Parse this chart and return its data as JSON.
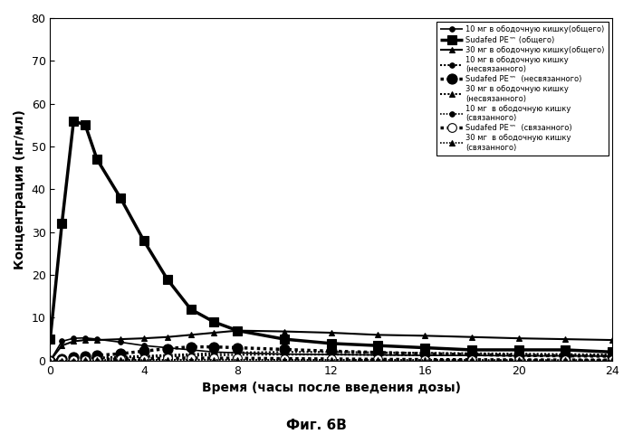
{
  "xlabel": "Время (часы после введения дозы)",
  "ylabel": "Концентрация (нг/мл)",
  "caption": "Фиг. 6B",
  "xlim": [
    0,
    24
  ],
  "ylim": [
    0,
    80
  ],
  "xticks": [
    0,
    4,
    8,
    12,
    16,
    20,
    24
  ],
  "yticks": [
    0,
    10,
    20,
    30,
    40,
    50,
    60,
    70,
    80
  ],
  "series": [
    {
      "label": "10 мг в ободочную кишку(общего)",
      "x": [
        0,
        0.5,
        1,
        1.5,
        2,
        3,
        4,
        5,
        6,
        7,
        8,
        10,
        12,
        14,
        16,
        18,
        20,
        22,
        24
      ],
      "y": [
        0,
        4.5,
        5.2,
        5.3,
        5.0,
        4.3,
        3.5,
        3.0,
        2.5,
        2.0,
        1.8,
        1.5,
        1.4,
        1.3,
        1.2,
        1.2,
        1.1,
        1.1,
        1.0
      ],
      "linestyle": "solid",
      "linewidth": 1.2,
      "marker": "o",
      "markersize": 4,
      "markerfacecolor": "black",
      "bold": false
    },
    {
      "label": "Sudafed PE™ (общего)",
      "x": [
        0,
        0.5,
        1,
        1.5,
        2,
        3,
        4,
        5,
        6,
        7,
        8,
        10,
        12,
        14,
        16,
        18,
        20,
        22,
        24
      ],
      "y": [
        5,
        32,
        56,
        55,
        47,
        38,
        28,
        19,
        12,
        9,
        7,
        5,
        4,
        3.5,
        3.0,
        2.5,
        2.5,
        2.5,
        2.0
      ],
      "linestyle": "solid",
      "linewidth": 2.5,
      "marker": "s",
      "markersize": 7,
      "markerfacecolor": "black",
      "bold": true
    },
    {
      "label": "30 мг в ободочную кишку(общего)",
      "x": [
        0,
        0.5,
        1,
        1.5,
        2,
        3,
        4,
        5,
        6,
        7,
        8,
        10,
        12,
        14,
        16,
        18,
        20,
        22,
        24
      ],
      "y": [
        0,
        3.5,
        4.5,
        4.8,
        4.8,
        5.0,
        5.2,
        5.5,
        6.0,
        6.5,
        7.0,
        6.8,
        6.5,
        6.0,
        5.8,
        5.5,
        5.2,
        5.0,
        4.8
      ],
      "linestyle": "solid",
      "linewidth": 1.5,
      "marker": "^",
      "markersize": 5,
      "markerfacecolor": "black",
      "bold": false
    },
    {
      "label": "10 мг в ободочную кишку\n(несвязанного)",
      "x": [
        0,
        0.5,
        1,
        1.5,
        2,
        3,
        4,
        5,
        6,
        7,
        8,
        10,
        12,
        14,
        16,
        18,
        20,
        22,
        24
      ],
      "y": [
        0,
        0.3,
        0.5,
        0.6,
        0.7,
        0.9,
        1.1,
        1.3,
        1.5,
        1.7,
        1.9,
        2.0,
        2.0,
        1.9,
        1.8,
        1.7,
        1.6,
        1.5,
        1.4
      ],
      "linestyle": "dotted",
      "linewidth": 1.5,
      "marker": "o",
      "markersize": 4,
      "markerfacecolor": "black",
      "bold": false
    },
    {
      "label": "Sudafed PE™  (несвязанного)",
      "x": [
        0,
        0.5,
        1,
        1.5,
        2,
        3,
        4,
        5,
        6,
        7,
        8,
        10,
        12,
        14,
        16,
        18,
        20,
        22,
        24
      ],
      "y": [
        0,
        0.4,
        0.8,
        1.0,
        1.2,
        1.6,
        2.2,
        2.8,
        3.2,
        3.2,
        3.0,
        2.6,
        2.2,
        1.9,
        1.6,
        1.4,
        1.2,
        1.1,
        1.0
      ],
      "linestyle": "dotted",
      "linewidth": 2.5,
      "marker": "o",
      "markersize": 8,
      "markerfacecolor": "black",
      "bold": true
    },
    {
      "label": "30 мг в ободочную кишку\n(несвязанного)",
      "x": [
        0,
        0.5,
        1,
        1.5,
        2,
        3,
        4,
        5,
        6,
        7,
        8,
        10,
        12,
        14,
        16,
        18,
        20,
        22,
        24
      ],
      "y": [
        0,
        0.2,
        0.35,
        0.45,
        0.55,
        0.7,
        0.85,
        1.0,
        1.15,
        1.25,
        1.35,
        1.4,
        1.4,
        1.35,
        1.3,
        1.25,
        1.2,
        1.15,
        1.1
      ],
      "linestyle": "dotted",
      "linewidth": 1.5,
      "marker": "^",
      "markersize": 5,
      "markerfacecolor": "black",
      "bold": false
    },
    {
      "label": "10 мг  в ободочную кишку\n(связанного)",
      "x": [
        0,
        0.5,
        1,
        1.5,
        2,
        3,
        4,
        5,
        6,
        7,
        8,
        10,
        12,
        14,
        16,
        18,
        20,
        22,
        24
      ],
      "y": [
        0,
        0.05,
        0.08,
        0.1,
        0.12,
        0.15,
        0.18,
        0.2,
        0.22,
        0.23,
        0.22,
        0.2,
        0.18,
        0.16,
        0.14,
        0.13,
        0.12,
        0.11,
        0.1
      ],
      "linestyle": "dotted",
      "linewidth": 1.2,
      "marker": "o",
      "markersize": 4,
      "markerfacecolor": "black",
      "bold": false
    },
    {
      "label": "Sudafed PE™  (связанного)",
      "x": [
        0,
        0.5,
        1,
        1.5,
        2,
        3,
        4,
        5,
        6,
        7,
        8,
        10,
        12,
        14,
        16,
        18,
        20,
        22,
        24
      ],
      "y": [
        0,
        0.08,
        0.15,
        0.2,
        0.25,
        0.35,
        0.45,
        0.55,
        0.6,
        0.58,
        0.55,
        0.45,
        0.38,
        0.3,
        0.25,
        0.2,
        0.17,
        0.14,
        0.12
      ],
      "linestyle": "dotted",
      "linewidth": 2.5,
      "marker": "o",
      "markersize": 7,
      "markerfacecolor": "white",
      "bold": true
    },
    {
      "label": "30 мг  в ободочную кишку\n(связанного)",
      "x": [
        0,
        0.5,
        1,
        1.5,
        2,
        3,
        4,
        5,
        6,
        7,
        8,
        10,
        12,
        14,
        16,
        18,
        20,
        22,
        24
      ],
      "y": [
        0,
        0.03,
        0.05,
        0.07,
        0.09,
        0.12,
        0.15,
        0.18,
        0.2,
        0.21,
        0.21,
        0.2,
        0.18,
        0.16,
        0.15,
        0.13,
        0.12,
        0.11,
        0.1
      ],
      "linestyle": "dotted",
      "linewidth": 1.2,
      "marker": "^",
      "markersize": 4,
      "markerfacecolor": "black",
      "bold": false
    }
  ],
  "legend_fontsize": 6.0,
  "axis_label_fontsize": 10,
  "tick_fontsize": 9,
  "caption_fontsize": 11
}
